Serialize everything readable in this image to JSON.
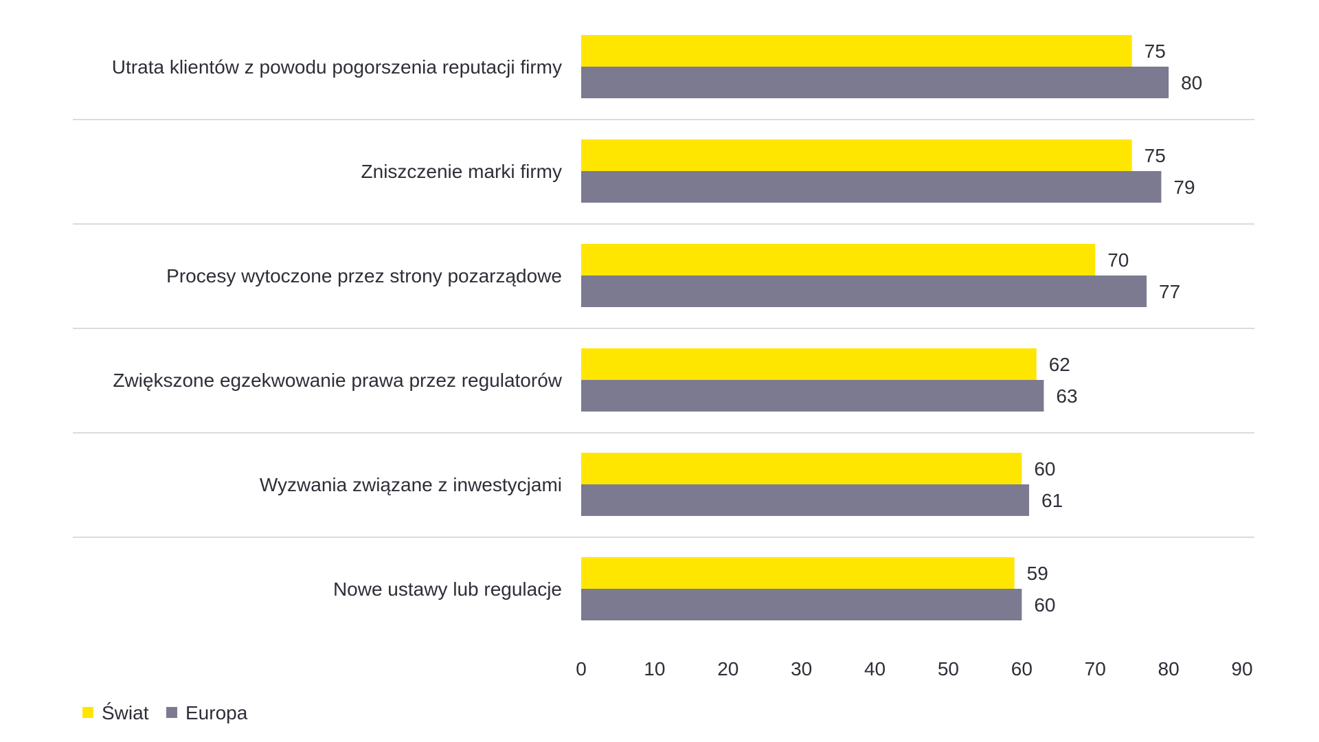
{
  "chart_data": {
    "type": "bar",
    "orientation": "horizontal",
    "categories": [
      "Utrata klientów z powodu pogorszenia reputacji firmy",
      "Zniszczenie marki firmy",
      "Procesy wytoczone przez strony pozarządowe",
      "Zwiększone egzekwowanie prawa przez regulatorów",
      "Wyzwania związane z inwestycjami",
      "Nowe ustawy lub regulacje"
    ],
    "series": [
      {
        "name": "Świat",
        "color": "#ffe600",
        "values": [
          75,
          75,
          70,
          62,
          60,
          59
        ]
      },
      {
        "name": "Europa",
        "color": "#7b7a91",
        "values": [
          80,
          79,
          77,
          63,
          61,
          60
        ]
      }
    ],
    "xlim": [
      0,
      90
    ],
    "xticks": [
      "0",
      "10",
      "20",
      "30",
      "40",
      "50",
      "60",
      "70",
      "80",
      "90"
    ],
    "grid": false,
    "category_separators": true,
    "data_labels": true,
    "legend_position": "bottom-left",
    "text_color": "#2e2e38",
    "separator_color": "#cfcfd6"
  }
}
